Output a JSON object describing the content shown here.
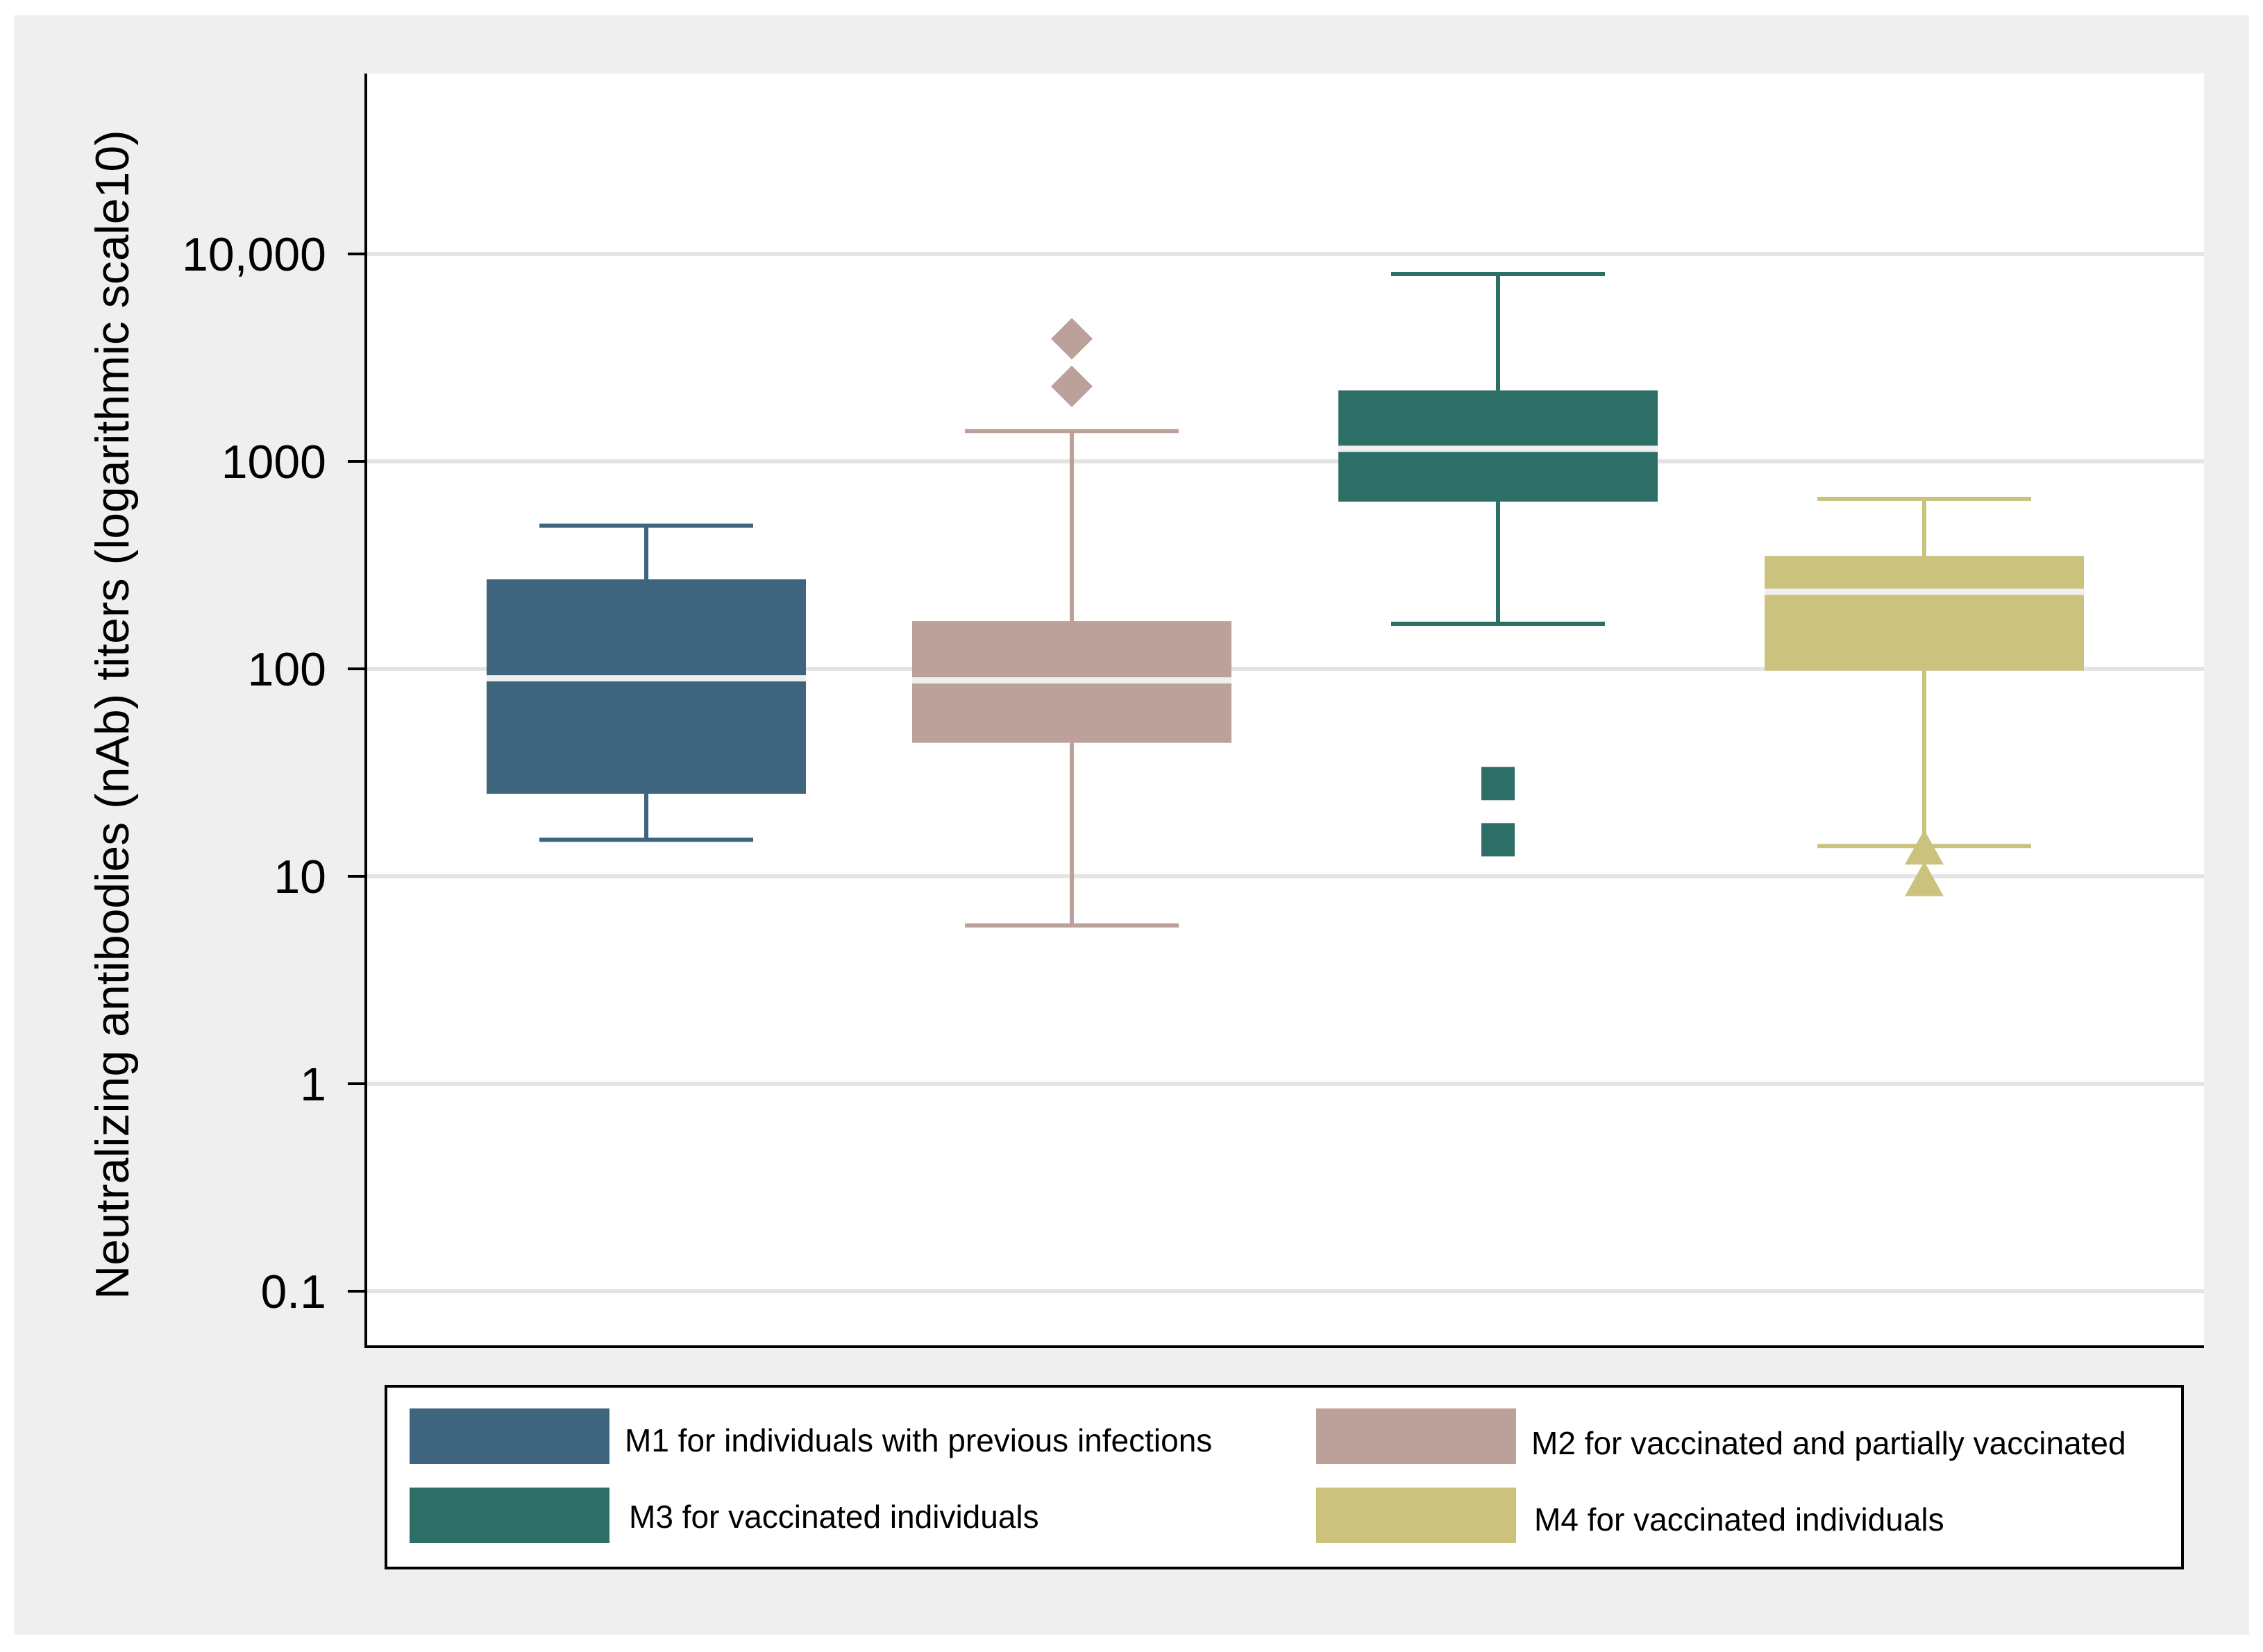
{
  "chart_data": {
    "type": "box",
    "ylabel": "Neutralizing antibodies (nAb) titers (logarithmic scale10)",
    "yscale": "log10",
    "ylim": [
      0.05,
      100000
    ],
    "yticks": [
      {
        "value": 0.1,
        "label": "0.1"
      },
      {
        "value": 1,
        "label": "1"
      },
      {
        "value": 10,
        "label": "10"
      },
      {
        "value": 100,
        "label": "100"
      },
      {
        "value": 1000,
        "label": "1000"
      },
      {
        "value": 10000,
        "label": "10,000"
      }
    ],
    "grid": true,
    "legend_position": "bottom",
    "series": [
      {
        "name": "M1 for individuals with previous infections",
        "color": "#3e647e",
        "whisker_low": 15,
        "q1": 25,
        "median": 90,
        "q3": 270,
        "whisker_high": 490,
        "outliers": [],
        "marker": "none"
      },
      {
        "name": "M2 for vaccinated and partially vaccinated",
        "color": "#bca09a",
        "whisker_low": 5.8,
        "q1": 44,
        "median": 88,
        "q3": 170,
        "whisker_high": 1400,
        "outliers": [
          2300,
          3900
        ],
        "marker": "diamond"
      },
      {
        "name": "M3 for vaccinated individuals",
        "color": "#2d6e66",
        "whisker_low": 165,
        "q1": 640,
        "median": 1150,
        "q3": 2200,
        "whisker_high": 8000,
        "outliers": [
          15,
          28
        ],
        "marker": "square"
      },
      {
        "name": "M4 for vaccinated individuals",
        "color": "#cbc37d",
        "whisker_low": 14,
        "q1": 98,
        "median": 235,
        "q3": 350,
        "whisker_high": 660,
        "outliers": [
          9.5,
          13.5
        ],
        "marker": "triangle"
      }
    ]
  }
}
